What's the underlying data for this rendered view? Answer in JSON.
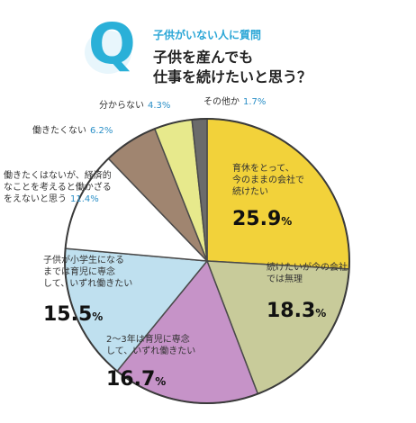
{
  "header": {
    "badge_letter": "Q",
    "eyebrow": "子供がいない人に質問",
    "question_line1": "子供を産んでも",
    "question_line2": "仕事を続けたいと思う？"
  },
  "chart_data": {
    "type": "pie",
    "slices": [
      {
        "lines": [
          "育休をとって、",
          "今のままの会社で",
          "続けたい"
        ],
        "value": 25.9,
        "value_text": "25.9",
        "color": "#f2d23a"
      },
      {
        "lines": [
          "続けたいが今の会社",
          "では無理"
        ],
        "value": 18.3,
        "value_text": "18.3",
        "color": "#c8cb9a"
      },
      {
        "lines": [
          "2～3年は育児に専念",
          "して、いずれ働きたい"
        ],
        "value": 16.7,
        "value_text": "16.7",
        "color": "#c693c8"
      },
      {
        "lines": [
          "子供が小学生になる",
          "までは育児に専念",
          "して、いずれ働きたい"
        ],
        "value": 15.5,
        "value_text": "15.5",
        "color": "#bfe0ef"
      },
      {
        "lines": [
          "働きたくはないが、経済的",
          "なことを考えると働かざる",
          "をえないと思う"
        ],
        "value": 11.4,
        "value_text": "11.4",
        "color": "#ffffff"
      },
      {
        "lines": [
          "働きたくない"
        ],
        "value": 6.2,
        "value_text": "6.2",
        "color": "#a08570"
      },
      {
        "lines": [
          "分からない"
        ],
        "value": 4.3,
        "value_text": "4.3",
        "color": "#e7e98c"
      },
      {
        "lines": [
          "その他か"
        ],
        "value": 1.7,
        "value_text": "1.7",
        "color": "#6b6b6b"
      }
    ],
    "unit": "%"
  }
}
